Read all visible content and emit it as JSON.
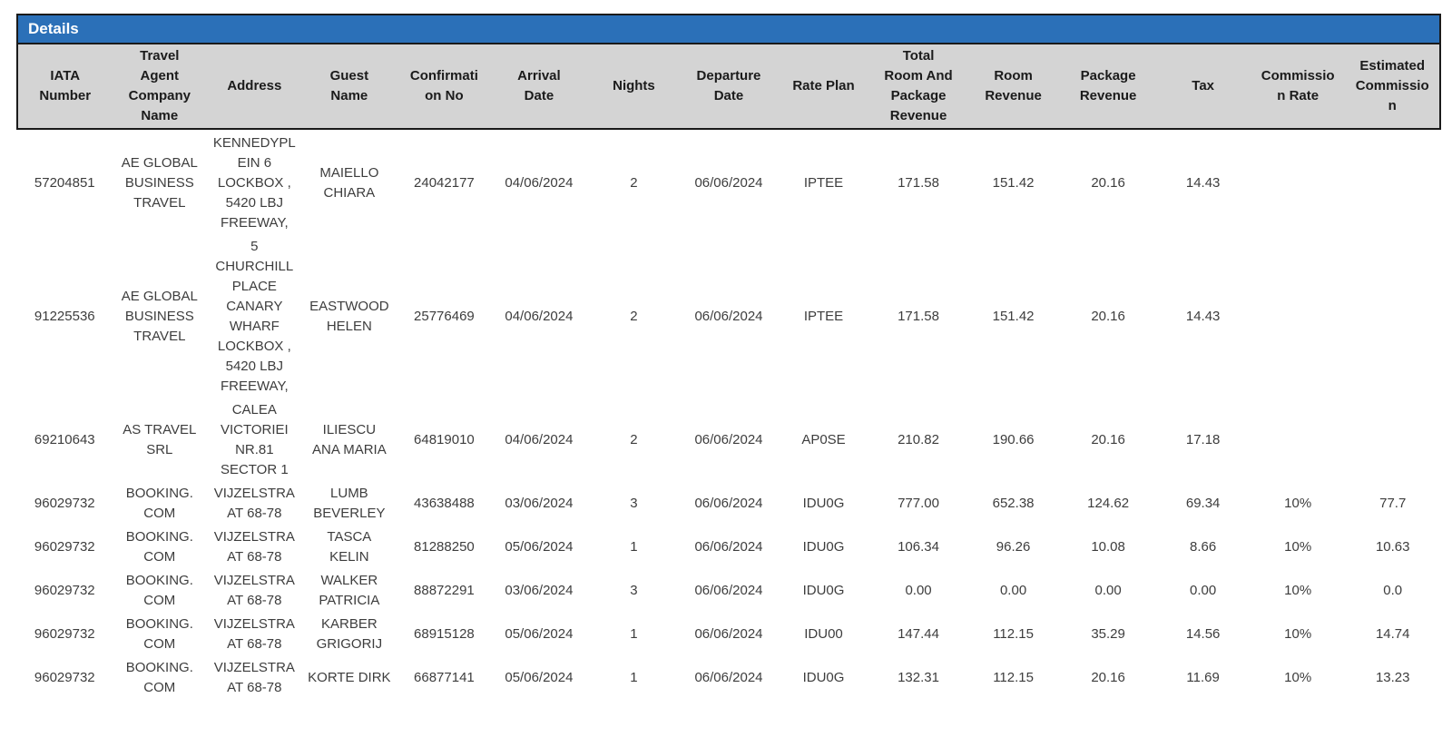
{
  "panel": {
    "title": "Details"
  },
  "colors": {
    "header_bar_bg": "#2B70B8",
    "column_header_bg": "#D4D4D4",
    "border": "#1A1A1A",
    "title_text": "#FFFFFF"
  },
  "table": {
    "columns": [
      {
        "key": "iata",
        "label": "IATA\nNumber"
      },
      {
        "key": "agent",
        "label": "Travel\nAgent\nCompany\nName"
      },
      {
        "key": "address",
        "label": "Address"
      },
      {
        "key": "guest",
        "label": "Guest\nName"
      },
      {
        "key": "confirmation",
        "label": "Confirmati\non No"
      },
      {
        "key": "arrival",
        "label": "Arrival\nDate"
      },
      {
        "key": "nights",
        "label": "Nights"
      },
      {
        "key": "departure",
        "label": "Departure\nDate"
      },
      {
        "key": "rate_plan",
        "label": "Rate Plan"
      },
      {
        "key": "total_revenue",
        "label": "Total\nRoom And\nPackage\nRevenue"
      },
      {
        "key": "room_revenue",
        "label": "Room\nRevenue"
      },
      {
        "key": "package_revenue",
        "label": "Package\nRevenue"
      },
      {
        "key": "tax",
        "label": "Tax"
      },
      {
        "key": "commission_rate",
        "label": "Commissio\nn Rate"
      },
      {
        "key": "estimated_commission",
        "label": "Estimated\nCommissio\nn"
      }
    ],
    "rows": [
      {
        "iata": "57204851",
        "agent": "AE GLOBAL\nBUSINESS\nTRAVEL",
        "address": "KENNEDYPL\nEIN 6\nLOCKBOX ,\n5420 LBJ\nFREEWAY,",
        "guest": "MAIELLO\nCHIARA",
        "confirmation": "24042177",
        "arrival": "04/06/2024",
        "nights": "2",
        "departure": "06/06/2024",
        "rate_plan": "IPTEE",
        "total_revenue": "171.58",
        "room_revenue": "151.42",
        "package_revenue": "20.16",
        "tax": "14.43",
        "commission_rate": "",
        "estimated_commission": ""
      },
      {
        "iata": "91225536",
        "agent": "AE GLOBAL\nBUSINESS\nTRAVEL",
        "address": "5\nCHURCHILL\nPLACE\nCANARY\nWHARF\nLOCKBOX ,\n5420 LBJ\nFREEWAY,",
        "guest": "EASTWOOD\nHELEN",
        "confirmation": "25776469",
        "arrival": "04/06/2024",
        "nights": "2",
        "departure": "06/06/2024",
        "rate_plan": "IPTEE",
        "total_revenue": "171.58",
        "room_revenue": "151.42",
        "package_revenue": "20.16",
        "tax": "14.43",
        "commission_rate": "",
        "estimated_commission": ""
      },
      {
        "iata": "69210643",
        "agent": "AS TRAVEL\nSRL",
        "address": "CALEA\nVICTORIEI\nNR.81\nSECTOR 1",
        "guest": "ILIESCU\nANA MARIA",
        "confirmation": "64819010",
        "arrival": "04/06/2024",
        "nights": "2",
        "departure": "06/06/2024",
        "rate_plan": "AP0SE",
        "total_revenue": "210.82",
        "room_revenue": "190.66",
        "package_revenue": "20.16",
        "tax": "17.18",
        "commission_rate": "",
        "estimated_commission": ""
      },
      {
        "iata": "96029732",
        "agent": "BOOKING.\nCOM",
        "address": "VIJZELSTRA\nAT 68-78",
        "guest": "LUMB\nBEVERLEY",
        "confirmation": "43638488",
        "arrival": "03/06/2024",
        "nights": "3",
        "departure": "06/06/2024",
        "rate_plan": "IDU0G",
        "total_revenue": "777.00",
        "room_revenue": "652.38",
        "package_revenue": "124.62",
        "tax": "69.34",
        "commission_rate": "10%",
        "estimated_commission": "77.7"
      },
      {
        "iata": "96029732",
        "agent": "BOOKING.\nCOM",
        "address": "VIJZELSTRA\nAT 68-78",
        "guest": "TASCA\nKELIN",
        "confirmation": "81288250",
        "arrival": "05/06/2024",
        "nights": "1",
        "departure": "06/06/2024",
        "rate_plan": "IDU0G",
        "total_revenue": "106.34",
        "room_revenue": "96.26",
        "package_revenue": "10.08",
        "tax": "8.66",
        "commission_rate": "10%",
        "estimated_commission": "10.63"
      },
      {
        "iata": "96029732",
        "agent": "BOOKING.\nCOM",
        "address": "VIJZELSTRA\nAT 68-78",
        "guest": "WALKER\nPATRICIA",
        "confirmation": "88872291",
        "arrival": "03/06/2024",
        "nights": "3",
        "departure": "06/06/2024",
        "rate_plan": "IDU0G",
        "total_revenue": "0.00",
        "room_revenue": "0.00",
        "package_revenue": "0.00",
        "tax": "0.00",
        "commission_rate": "10%",
        "estimated_commission": "0.0"
      },
      {
        "iata": "96029732",
        "agent": "BOOKING.\nCOM",
        "address": "VIJZELSTRA\nAT 68-78",
        "guest": "KARBER\nGRIGORIJ",
        "confirmation": "68915128",
        "arrival": "05/06/2024",
        "nights": "1",
        "departure": "06/06/2024",
        "rate_plan": "IDU00",
        "total_revenue": "147.44",
        "room_revenue": "112.15",
        "package_revenue": "35.29",
        "tax": "14.56",
        "commission_rate": "10%",
        "estimated_commission": "14.74"
      },
      {
        "iata": "96029732",
        "agent": "BOOKING.\nCOM",
        "address": "VIJZELSTRA\nAT 68-78",
        "guest": "KORTE DIRK",
        "confirmation": "66877141",
        "arrival": "05/06/2024",
        "nights": "1",
        "departure": "06/06/2024",
        "rate_plan": "IDU0G",
        "total_revenue": "132.31",
        "room_revenue": "112.15",
        "package_revenue": "20.16",
        "tax": "11.69",
        "commission_rate": "10%",
        "estimated_commission": "13.23"
      }
    ]
  }
}
